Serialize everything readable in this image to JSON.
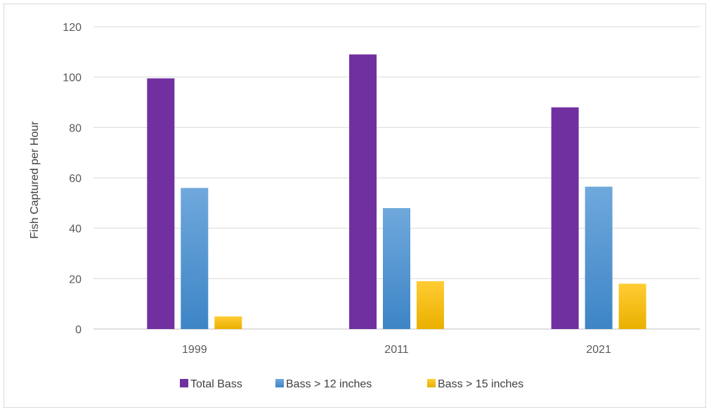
{
  "chart_data": {
    "type": "bar",
    "title": "",
    "xlabel": "",
    "ylabel": "Fish Captured per Hour",
    "ylim": [
      0,
      120
    ],
    "yticks": [
      0,
      20,
      40,
      60,
      80,
      100,
      120
    ],
    "categories": [
      "1999",
      "2011",
      "2021"
    ],
    "series": [
      {
        "name": "Total Bass",
        "values": [
          99.5,
          109,
          88
        ],
        "color": "#7030a0"
      },
      {
        "name": "Bass  > 12 inches",
        "values": [
          56,
          48,
          56.5
        ],
        "color": "#5b9bd5"
      },
      {
        "name": "Bass  > 15 inches",
        "values": [
          5,
          19,
          18
        ],
        "color": "#ffc000"
      }
    ],
    "grid": true,
    "legend_position": "bottom"
  }
}
